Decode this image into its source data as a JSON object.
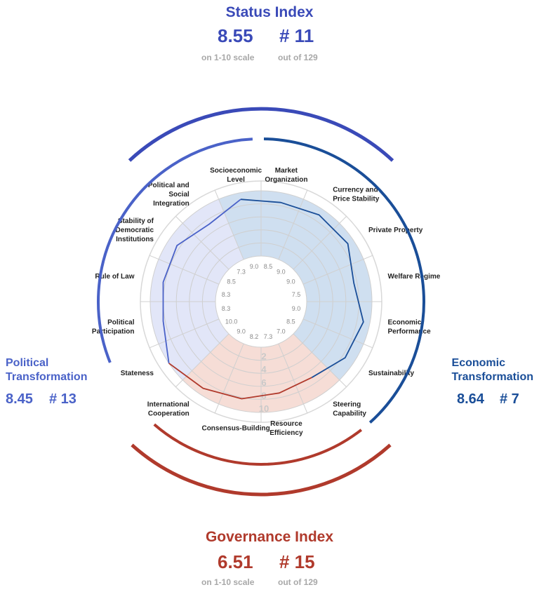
{
  "status_index": {
    "title": "Status Index",
    "score": "8.55",
    "rank": "# 11",
    "score_caption": "on 1-10 scale",
    "rank_caption": "out of 129"
  },
  "governance_index": {
    "title": "Governance Index",
    "score": "6.51",
    "rank": "# 15",
    "score_caption": "on 1-10 scale",
    "rank_caption": "out of 129"
  },
  "political_transformation": {
    "title_line1": "Political",
    "title_line2": "Transformation",
    "score": "8.45",
    "rank": "# 13"
  },
  "economic_transformation": {
    "title_line1": "Economic",
    "title_line2": "Transformation",
    "score": "8.64",
    "rank": "# 7"
  },
  "colors": {
    "status": "#3a4ab8",
    "political": "#4a62c8",
    "economic": "#1a4e98",
    "governance": "#b03a2c",
    "political_fill": "#e2e6f8",
    "economic_fill": "#cfdff0",
    "governance_fill": "#f6ddd6"
  },
  "chart_data": {
    "type": "radar",
    "scale": [
      0,
      10
    ],
    "ring_labels": [
      "2",
      "4",
      "6",
      "8",
      "10"
    ],
    "categories": [
      {
        "label": "Market Organization",
        "value": "8.5",
        "group": "economic"
      },
      {
        "label": "Currency and Price Stability",
        "value": "9.0",
        "group": "economic"
      },
      {
        "label": "Private Property",
        "value": "9.0",
        "group": "economic"
      },
      {
        "label": "Welfare Regime",
        "value": "7.5",
        "group": "economic"
      },
      {
        "label": "Economic Performance",
        "value": "9.0",
        "group": "economic"
      },
      {
        "label": "Sustainability",
        "value": "8.5",
        "group": "economic"
      },
      {
        "label": "Steering Capability",
        "value": "7.0",
        "group": "governance"
      },
      {
        "label": "Resource Efficiency",
        "value": "7.3",
        "group": "governance"
      },
      {
        "label": "Consensus-Building",
        "value": "8.2",
        "group": "governance"
      },
      {
        "label": "International Cooperation",
        "value": "9.0",
        "group": "governance"
      },
      {
        "label": "Stateness",
        "value": "10.0",
        "group": "political"
      },
      {
        "label": "Political Participation",
        "value": "8.3",
        "group": "political"
      },
      {
        "label": "Rule of Law",
        "value": "8.3",
        "group": "political"
      },
      {
        "label": "Stability of Democratic Institutions",
        "value": "8.5",
        "group": "political"
      },
      {
        "label": "Political and Social Integration",
        "value": "7.3",
        "group": "political"
      },
      {
        "label": "Socioeconomic Level",
        "value": "9.0",
        "group": "economic"
      }
    ]
  }
}
